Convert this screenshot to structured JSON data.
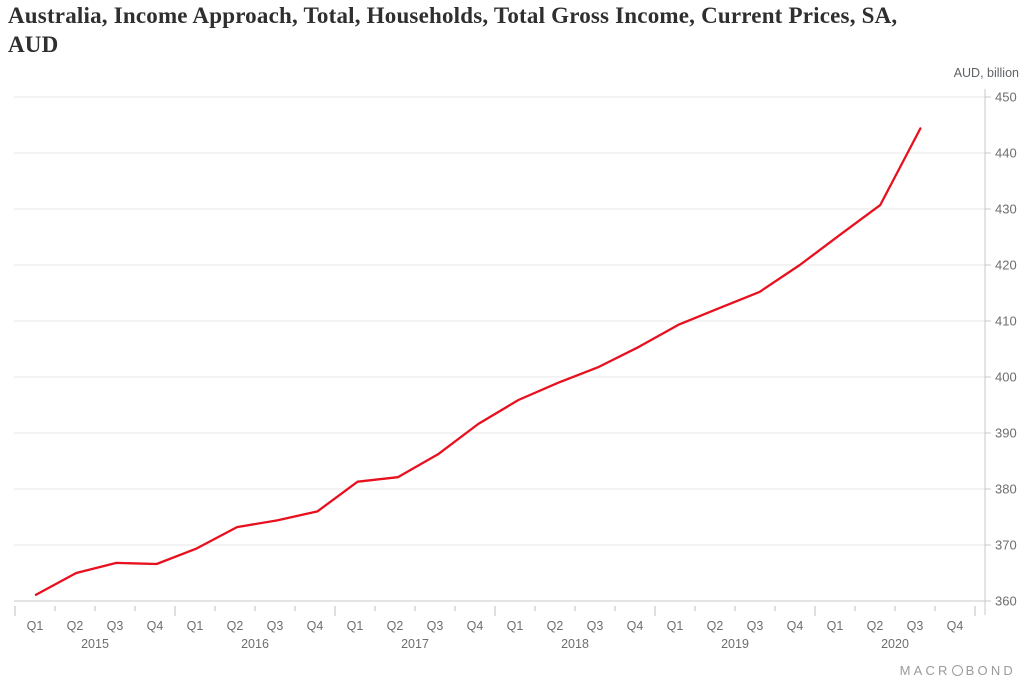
{
  "title": "Australia, Income Approach, Total, Households, Total Gross Income, Current Prices, SA, AUD",
  "unit_label": "AUD, billion",
  "footer": {
    "brand_left": "MACR",
    "brand_right": "BOND",
    "brand_full": "MACROBOND"
  },
  "colors": {
    "line": "#e8101e",
    "grid": "#e7e7e7",
    "axis": "#c9c9c9",
    "tick": "#bdbdbd",
    "axis_text": "#6e6e6e",
    "title_text": "#2f2f2f",
    "brand_text": "#9b9b9b"
  },
  "chart_data": {
    "type": "line",
    "title": "Australia, Income Approach, Total, Households, Total Gross Income, Current Prices, SA, AUD",
    "ylabel": "AUD, billion",
    "xlabel": "",
    "grid": true,
    "legend": "none",
    "ylim": [
      360,
      450
    ],
    "yticks": [
      360,
      370,
      380,
      390,
      400,
      410,
      420,
      430,
      440,
      450
    ],
    "quarter_labels": [
      "Q1",
      "Q2",
      "Q3",
      "Q4"
    ],
    "years": [
      "2015",
      "2016",
      "2017",
      "2018",
      "2019",
      "2020"
    ],
    "categories": [
      "2015 Q1",
      "2015 Q2",
      "2015 Q3",
      "2015 Q4",
      "2016 Q1",
      "2016 Q2",
      "2016 Q3",
      "2016 Q4",
      "2017 Q1",
      "2017 Q2",
      "2017 Q3",
      "2017 Q4",
      "2018 Q1",
      "2018 Q2",
      "2018 Q3",
      "2018 Q4",
      "2019 Q1",
      "2019 Q2",
      "2019 Q3",
      "2019 Q4",
      "2020 Q1",
      "2020 Q2",
      "2020 Q3"
    ],
    "values": [
      361.1,
      365.0,
      366.8,
      366.6,
      369.4,
      373.2,
      374.4,
      376.0,
      381.3,
      382.1,
      386.2,
      391.6,
      395.9,
      399.0,
      401.8,
      405.4,
      409.4,
      412.3,
      415.2,
      420.0,
      425.4,
      430.7,
      444.4
    ]
  }
}
